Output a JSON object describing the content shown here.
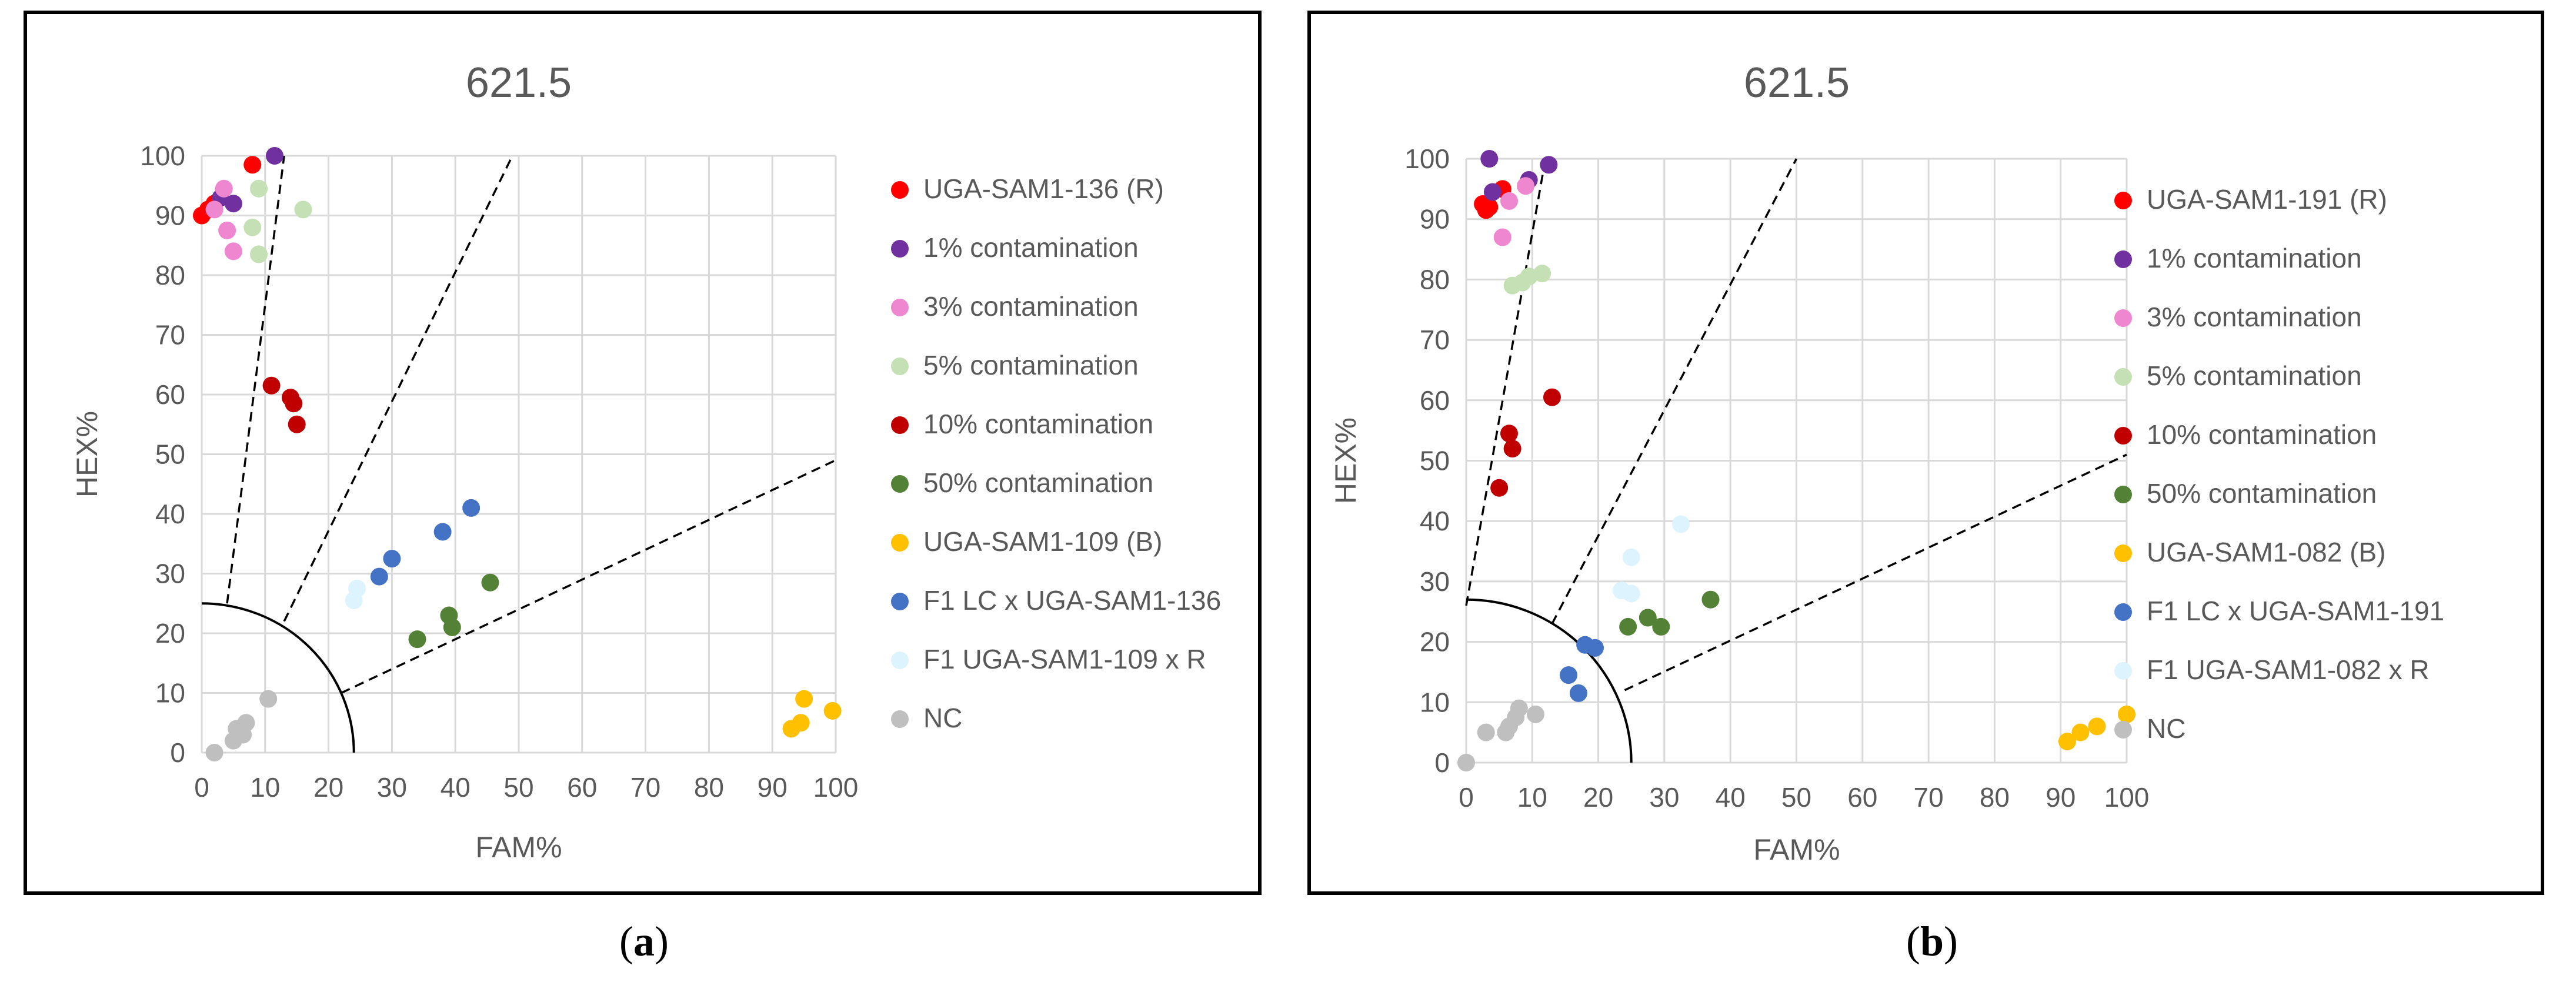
{
  "panels": [
    {
      "label_open": "(",
      "label_letter": "a",
      "label_close": ")"
    },
    {
      "label_open": "(",
      "label_letter": "b",
      "label_close": ")"
    }
  ],
  "chart_data": [
    {
      "type": "scatter",
      "title": "621.5",
      "xlabel": "FAM%",
      "ylabel": "HEX%",
      "xlim": [
        0,
        100
      ],
      "ylim": [
        0,
        100
      ],
      "xticks": [
        "0",
        "10",
        "20",
        "30",
        "40",
        "50",
        "60",
        "70",
        "80",
        "90",
        "100"
      ],
      "yticks": [
        "0",
        "10",
        "20",
        "30",
        "40",
        "50",
        "60",
        "70",
        "80",
        "90",
        "100"
      ],
      "grid": true,
      "legend_position": "right",
      "guides": {
        "lines": [
          [
            [
              4,
              25
            ],
            [
              13,
              100
            ]
          ],
          [
            [
              13,
              22
            ],
            [
              49,
              100
            ]
          ],
          [
            [
              22,
              10
            ],
            [
              100,
              49
            ]
          ]
        ],
        "arc": {
          "rx": 24,
          "ry": 25
        }
      },
      "series": [
        {
          "name": "UGA-SAM1-136 (R)",
          "color": "#ff0000",
          "points": [
            [
              0,
              90
            ],
            [
              1,
              91
            ],
            [
              2,
              92
            ],
            [
              8,
              98.5
            ]
          ]
        },
        {
          "name": "1% contamination",
          "color": "#7030a0",
          "points": [
            [
              3,
              93
            ],
            [
              5,
              92
            ],
            [
              11.5,
              100
            ]
          ]
        },
        {
          "name": "3% contamination",
          "color": "#ee86d0",
          "points": [
            [
              2,
              91
            ],
            [
              3.5,
              94.5
            ],
            [
              4,
              87.5
            ],
            [
              5,
              84
            ]
          ]
        },
        {
          "name": "5% contamination",
          "color": "#c5e0b4",
          "points": [
            [
              8,
              88
            ],
            [
              9,
              94.5
            ],
            [
              9,
              83.5
            ],
            [
              16,
              91
            ]
          ]
        },
        {
          "name": "10% contamination",
          "color": "#c00000",
          "points": [
            [
              11,
              61.5
            ],
            [
              14,
              59.5
            ],
            [
              14.5,
              58.5
            ],
            [
              15,
              55
            ]
          ]
        },
        {
          "name": "50% contamination",
          "color": "#538135",
          "points": [
            [
              34,
              19
            ],
            [
              39,
              23
            ],
            [
              39.5,
              21
            ],
            [
              45.5,
              28.5
            ]
          ]
        },
        {
          "name": "UGA-SAM1-109 (B)",
          "color": "#ffc000",
          "points": [
            [
              93,
              4
            ],
            [
              94.5,
              5
            ],
            [
              95,
              9
            ],
            [
              99.5,
              7
            ]
          ]
        },
        {
          "name": "F1 LC x UGA-SAM1-136",
          "color": "#4472c4",
          "points": [
            [
              28,
              29.5
            ],
            [
              30,
              32.5
            ],
            [
              38,
              37
            ],
            [
              42.5,
              41
            ]
          ]
        },
        {
          "name": "F1 UGA-SAM1-109 x R",
          "color": "#ddf3fd",
          "points": [
            [
              24,
              25.5
            ],
            [
              24.5,
              27.5
            ]
          ]
        },
        {
          "name": "NC",
          "color": "#bfbfbf",
          "points": [
            [
              2,
              0
            ],
            [
              5,
              2
            ],
            [
              5.5,
              4
            ],
            [
              6.5,
              3
            ],
            [
              7,
              5
            ],
            [
              10.5,
              9
            ]
          ]
        }
      ]
    },
    {
      "type": "scatter",
      "title": "621.5",
      "xlabel": "FAM%",
      "ylabel": "HEX%",
      "xlim": [
        0,
        100
      ],
      "ylim": [
        0,
        100
      ],
      "xticks": [
        "0",
        "10",
        "20",
        "30",
        "40",
        "50",
        "60",
        "70",
        "80",
        "90",
        "100"
      ],
      "yticks": [
        "0",
        "10",
        "20",
        "30",
        "40",
        "50",
        "60",
        "70",
        "80",
        "90",
        "100"
      ],
      "grid": true,
      "legend_position": "right",
      "guides": {
        "lines": [
          [
            [
              0,
              26
            ],
            [
              12,
              100
            ]
          ],
          [
            [
              13,
              23
            ],
            [
              50,
              100
            ]
          ],
          [
            [
              24,
              12
            ],
            [
              100,
              51
            ]
          ]
        ],
        "arc": {
          "rx": 25,
          "ry": 27
        }
      },
      "series": [
        {
          "name": "UGA-SAM1-191 (R)",
          "color": "#ff0000",
          "points": [
            [
              2.5,
              92.5
            ],
            [
              3,
              91.5
            ],
            [
              3.5,
              92
            ],
            [
              5.5,
              95
            ]
          ]
        },
        {
          "name": "1% contamination",
          "color": "#7030a0",
          "points": [
            [
              3.5,
              100
            ],
            [
              4,
              94.5
            ],
            [
              9.5,
              96.5
            ],
            [
              12.5,
              99
            ]
          ]
        },
        {
          "name": "3% contamination",
          "color": "#ee86d0",
          "points": [
            [
              5.5,
              87
            ],
            [
              6.5,
              93
            ],
            [
              9,
              95.5
            ]
          ]
        },
        {
          "name": "5% contamination",
          "color": "#c5e0b4",
          "points": [
            [
              7,
              79
            ],
            [
              8.5,
              79.5
            ],
            [
              9.5,
              80.5
            ],
            [
              11.5,
              81
            ]
          ]
        },
        {
          "name": "10% contamination",
          "color": "#c00000",
          "points": [
            [
              5,
              45.5
            ],
            [
              6.5,
              54.5
            ],
            [
              7,
              52
            ],
            [
              13,
              60.5
            ]
          ]
        },
        {
          "name": "50% contamination",
          "color": "#538135",
          "points": [
            [
              24.5,
              22.5
            ],
            [
              27.5,
              24
            ],
            [
              29.5,
              22.5
            ],
            [
              37,
              27
            ]
          ]
        },
        {
          "name": "UGA-SAM1-082 (B)",
          "color": "#ffc000",
          "points": [
            [
              91,
              3.5
            ],
            [
              93,
              5
            ],
            [
              95.5,
              6
            ],
            [
              100,
              8
            ]
          ]
        },
        {
          "name": "F1 LC x UGA-SAM1-191",
          "color": "#4472c4",
          "points": [
            [
              15.5,
              14.5
            ],
            [
              17,
              11.5
            ],
            [
              18,
              19.5
            ],
            [
              19.5,
              19
            ]
          ]
        },
        {
          "name": "F1 UGA-SAM1-082 x R",
          "color": "#ddf3fd",
          "points": [
            [
              23.5,
              28.5
            ],
            [
              25,
              28
            ],
            [
              25,
              34
            ],
            [
              32.5,
              39.5
            ]
          ]
        },
        {
          "name": "NC",
          "color": "#bfbfbf",
          "points": [
            [
              0,
              0
            ],
            [
              3,
              5
            ],
            [
              6,
              5
            ],
            [
              6.5,
              6
            ],
            [
              7.5,
              7.5
            ],
            [
              8,
              9
            ],
            [
              10.5,
              8
            ]
          ]
        }
      ]
    }
  ]
}
